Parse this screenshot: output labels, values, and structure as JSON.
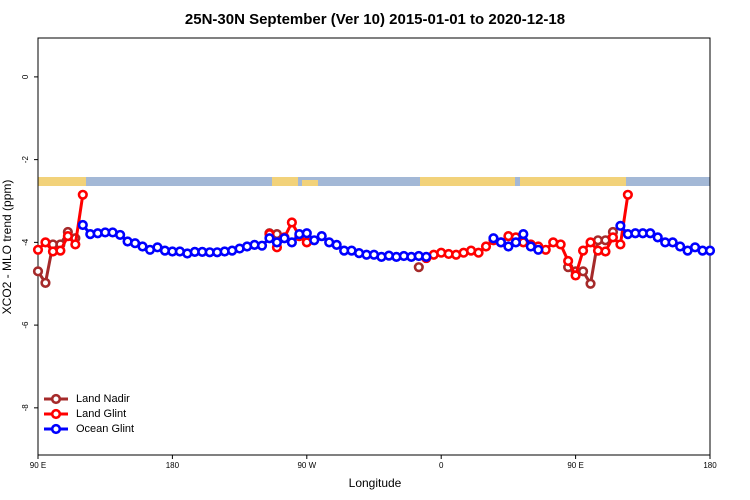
{
  "chart_data": {
    "type": "line",
    "title": "25N-30N September (Ver 10)   2015-01-01 to 2020-12-18",
    "x_label": "Longitude",
    "y_label": "XCO2 - MLO trend (ppm)",
    "xlim": [
      90,
      540
    ],
    "ylim": [
      -9.14,
      0.94
    ],
    "xticks": [
      {
        "value": 90,
        "label": "90 E"
      },
      {
        "value": 180,
        "label": "180"
      },
      {
        "value": 270,
        "label": "90 W"
      },
      {
        "value": 360,
        "label": "0"
      },
      {
        "value": 450,
        "label": "90 E"
      },
      {
        "value": 540,
        "label": "180"
      }
    ],
    "yticks": [
      0,
      -2,
      -4,
      -6,
      -8
    ],
    "legend": "lower left",
    "x": [
      90,
      95,
      100,
      105,
      110,
      115,
      120,
      125,
      130,
      135,
      140,
      145,
      150,
      155,
      160,
      165,
      170,
      175,
      180,
      185,
      190,
      195,
      200,
      205,
      210,
      215,
      220,
      225,
      230,
      235,
      240,
      245,
      250,
      255,
      260,
      265,
      270,
      275,
      280,
      285,
      290,
      295,
      300,
      305,
      310,
      315,
      320,
      325,
      330,
      335,
      340,
      345,
      350,
      355,
      360,
      365,
      370,
      375,
      380,
      385,
      390,
      395,
      400,
      405,
      410,
      415,
      420,
      425,
      430,
      435,
      440,
      445,
      450,
      455,
      460,
      465,
      470,
      475,
      480,
      485,
      490,
      495,
      500,
      505,
      510,
      515,
      520,
      525,
      530,
      535,
      540
    ],
    "series": [
      {
        "name": "Land Nadir",
        "color": "#a52a2a",
        "values": [
          -4.7,
          -4.98,
          -4.05,
          -4.05,
          -3.75,
          -3.9,
          null,
          null,
          null,
          null,
          null,
          null,
          null,
          null,
          null,
          null,
          null,
          null,
          null,
          null,
          null,
          null,
          null,
          null,
          null,
          null,
          null,
          null,
          null,
          null,
          null,
          -3.78,
          -3.8,
          null,
          null,
          null,
          null,
          null,
          null,
          null,
          null,
          null,
          null,
          null,
          null,
          null,
          null,
          null,
          null,
          null,
          null,
          -4.6,
          null,
          null,
          null,
          null,
          null,
          null,
          null,
          null,
          null,
          null,
          null,
          null,
          null,
          null,
          null,
          null,
          null,
          null,
          null,
          -4.6,
          -4.7,
          -4.7,
          -5.0,
          -3.95,
          -3.95,
          -3.75,
          null,
          null,
          null,
          null,
          null,
          null,
          null,
          null,
          null,
          null,
          null,
          null,
          null
        ]
      },
      {
        "name": "Land Glint",
        "color": "#ff0000",
        "values": [
          -4.18,
          -4.0,
          -4.22,
          -4.2,
          -3.85,
          -4.05,
          -2.85,
          null,
          null,
          null,
          null,
          null,
          null,
          null,
          null,
          null,
          null,
          null,
          null,
          null,
          null,
          null,
          null,
          null,
          null,
          null,
          null,
          null,
          null,
          null,
          null,
          -3.8,
          -4.12,
          -3.88,
          -3.52,
          -3.85,
          -4.0,
          null,
          null,
          null,
          null,
          null,
          null,
          null,
          null,
          null,
          null,
          null,
          null,
          null,
          null,
          null,
          -4.38,
          -4.3,
          -4.25,
          -4.28,
          -4.3,
          -4.25,
          -4.2,
          -4.25,
          -4.1,
          -3.95,
          -4.0,
          -3.85,
          -3.88,
          -4.0,
          -4.05,
          -4.1,
          -4.18,
          -4.0,
          -4.05,
          -4.45,
          -4.8,
          -4.2,
          -4.0,
          -4.2,
          -4.22,
          -3.88,
          -4.05,
          -2.85,
          null,
          null,
          null,
          null,
          null,
          null,
          null,
          null,
          null,
          null,
          null
        ]
      },
      {
        "name": "Ocean Glint",
        "color": "#0000ff",
        "values": [
          null,
          null,
          null,
          null,
          null,
          null,
          -3.58,
          -3.8,
          -3.78,
          -3.76,
          -3.76,
          -3.82,
          -3.98,
          -4.02,
          -4.1,
          -4.18,
          -4.12,
          -4.2,
          -4.22,
          -4.22,
          -4.27,
          -4.23,
          -4.23,
          -4.24,
          -4.24,
          -4.22,
          -4.2,
          -4.15,
          -4.1,
          -4.06,
          -4.08,
          -3.9,
          -4.0,
          -3.9,
          -4.0,
          -3.8,
          -3.78,
          -3.95,
          -3.85,
          -4.0,
          -4.06,
          -4.2,
          -4.2,
          -4.26,
          -4.3,
          -4.3,
          -4.35,
          -4.32,
          -4.35,
          -4.33,
          -4.35,
          -4.33,
          -4.35,
          null,
          null,
          null,
          null,
          null,
          null,
          null,
          null,
          -3.9,
          -4.0,
          -4.1,
          -4.0,
          -3.8,
          -4.1,
          -4.18,
          null,
          null,
          null,
          null,
          null,
          null,
          null,
          null,
          null,
          null,
          -3.6,
          -3.8,
          -3.78,
          -3.78,
          -3.78,
          -3.88,
          -4.0,
          -4.0,
          -4.1,
          -4.2,
          -4.12,
          -4.2,
          -4.2
        ]
      }
    ]
  }
}
